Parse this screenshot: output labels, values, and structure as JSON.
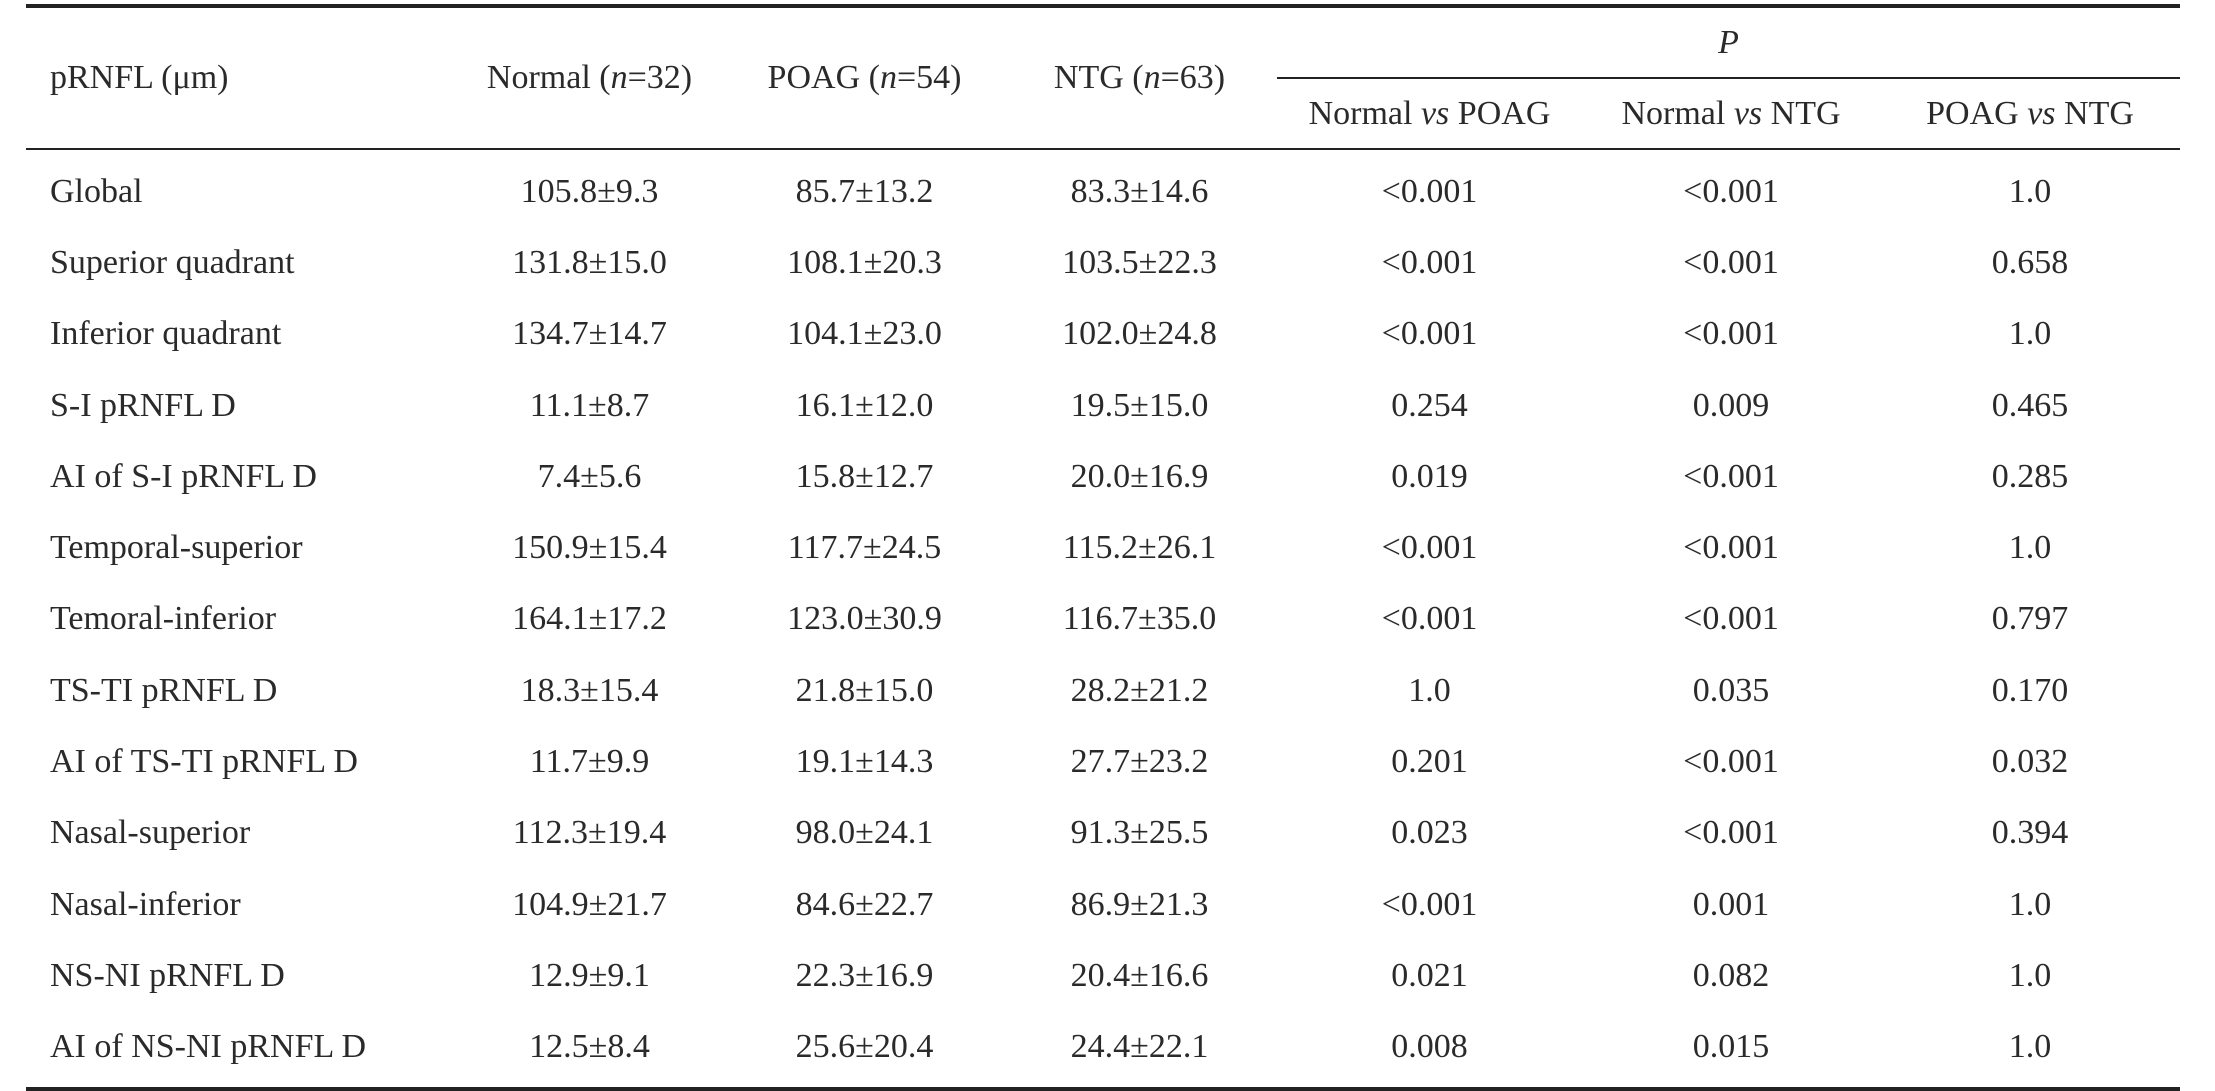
{
  "table": {
    "header": {
      "first_col": "pRNFL (μm)",
      "groups": [
        {
          "label": "Normal (",
          "n_italic": "n",
          "n_value": "=32)"
        },
        {
          "label": "POAG (",
          "n_italic": "n",
          "n_value": "=54)"
        },
        {
          "label": "NTG (",
          "n_italic": "n",
          "n_value": "=63)"
        }
      ],
      "p_label": "P",
      "comparisons": [
        {
          "a": "Normal",
          "vs": "vs",
          "b": "POAG"
        },
        {
          "a": "Normal",
          "vs": "vs",
          "b": "NTG"
        },
        {
          "a": "POAG",
          "vs": "vs",
          "b": "NTG"
        }
      ]
    },
    "rows": [
      {
        "label": "Global",
        "cells": [
          "105.8±9.3",
          "85.7±13.2",
          "83.3±14.6",
          "<0.001",
          "<0.001",
          "1.0"
        ]
      },
      {
        "label": "Superior quadrant",
        "cells": [
          "131.8±15.0",
          "108.1±20.3",
          "103.5±22.3",
          "<0.001",
          "<0.001",
          "0.658"
        ]
      },
      {
        "label": "Inferior quadrant",
        "cells": [
          "134.7±14.7",
          "104.1±23.0",
          "102.0±24.8",
          "<0.001",
          "<0.001",
          "1.0"
        ]
      },
      {
        "label": "S-I pRNFL D",
        "cells": [
          "11.1±8.7",
          "16.1±12.0",
          "19.5±15.0",
          "0.254",
          "0.009",
          "0.465"
        ]
      },
      {
        "label": "AI of S-I pRNFL D",
        "cells": [
          "7.4±5.6",
          "15.8±12.7",
          "20.0±16.9",
          "0.019",
          "<0.001",
          "0.285"
        ]
      },
      {
        "label": "Temporal-superior",
        "cells": [
          "150.9±15.4",
          "117.7±24.5",
          "115.2±26.1",
          "<0.001",
          "<0.001",
          "1.0"
        ]
      },
      {
        "label": "Temoral-inferior",
        "cells": [
          "164.1±17.2",
          "123.0±30.9",
          "116.7±35.0",
          "<0.001",
          "<0.001",
          "0.797"
        ]
      },
      {
        "label": "TS-TI pRNFL D",
        "cells": [
          "18.3±15.4",
          "21.8±15.0",
          "28.2±21.2",
          "1.0",
          "0.035",
          "0.170"
        ]
      },
      {
        "label": "AI of TS-TI pRNFL D",
        "cells": [
          "11.7±9.9",
          "19.1±14.3",
          "27.7±23.2",
          "0.201",
          "<0.001",
          "0.032"
        ]
      },
      {
        "label": "Nasal-superior",
        "cells": [
          "112.3±19.4",
          "98.0±24.1",
          "91.3±25.5",
          "0.023",
          "<0.001",
          "0.394"
        ]
      },
      {
        "label": "Nasal-inferior",
        "cells": [
          "104.9±21.7",
          "84.6±22.7",
          "86.9±21.3",
          "<0.001",
          "0.001",
          "1.0"
        ]
      },
      {
        "label": "NS-NI pRNFL D",
        "cells": [
          "12.9±9.1",
          "22.3±16.9",
          "20.4±16.6",
          "0.021",
          "0.082",
          "1.0"
        ]
      },
      {
        "label": "AI of NS-NI pRNFL D",
        "cells": [
          "12.5±8.4",
          "25.6±20.4",
          "24.4±22.1",
          "0.008",
          "0.015",
          "1.0"
        ]
      }
    ]
  }
}
